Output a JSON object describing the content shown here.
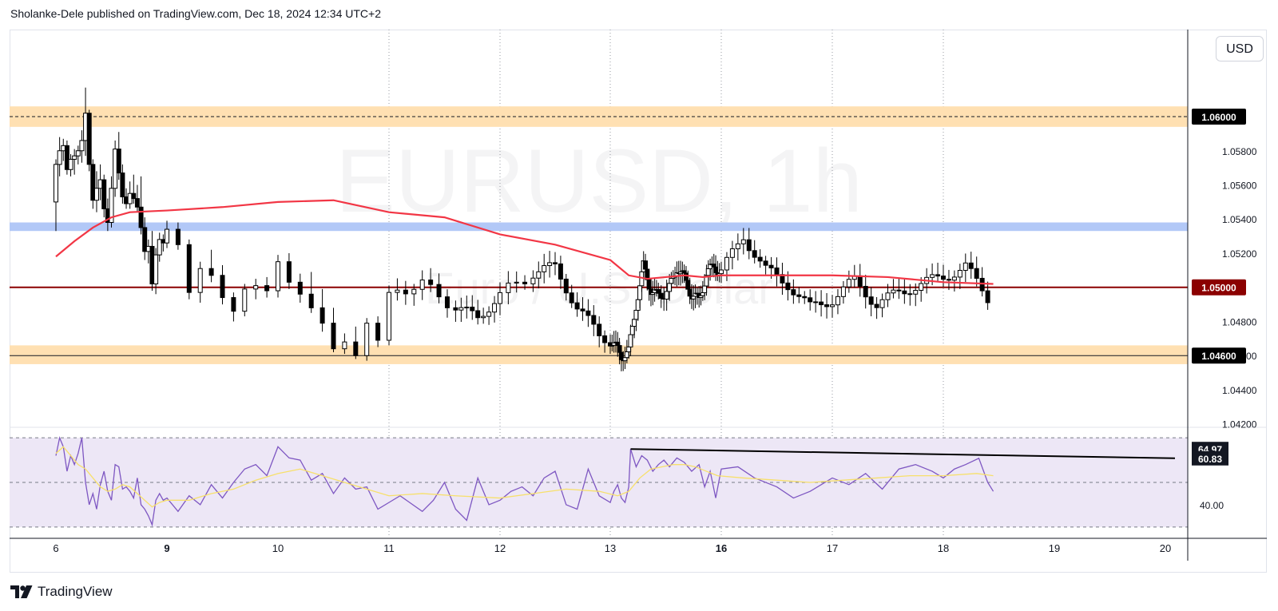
{
  "header": {
    "published_by": "Sholanke-Dele published on TradingView.com, Dec 18, 2024 12:34 UTC+2"
  },
  "currency_button": "USD",
  "watermark": {
    "symbol": "EURUSD, 1h",
    "description": "Euro / U.S. Dollar"
  },
  "footer": {
    "brand": "TradingView"
  },
  "colors": {
    "up": "#ffffff",
    "down": "#000000",
    "ema": "#f23645",
    "support_zone": "#ffe0b2",
    "blue_zone": "#b2c8f7",
    "key_level": "#8b0000",
    "rsi": "#7e57c2",
    "rsi_ma": "#f7e06b",
    "rsi_band": "#ede7f6"
  },
  "chart_data": [
    {
      "type": "candlestick",
      "symbol": "EURUSD",
      "timeframe": "1h",
      "price_axis": {
        "ticks": [
          "1.04200",
          "1.04400",
          "1.04600",
          "1.04800",
          "1.05000",
          "1.05200",
          "1.05400",
          "1.05600",
          "1.05800",
          "1.06000"
        ],
        "ylim": [
          1.0418,
          1.0651
        ]
      },
      "time_axis": {
        "ticks": [
          "6",
          "9",
          "10",
          "11",
          "12",
          "13",
          "16",
          "17",
          "18",
          "19",
          "20"
        ],
        "bold_ticks": [
          "9",
          "16"
        ]
      },
      "horizontal_levels": [
        {
          "price": 1.06,
          "label": "1.06000",
          "style": "dashed",
          "zone": [
            1.0594,
            1.0606
          ]
        },
        {
          "price": 1.05,
          "label": "1.05000",
          "style": "solid"
        },
        {
          "price": 1.046,
          "label": "1.04600",
          "style": "solid",
          "zone": [
            1.0455,
            1.0466
          ]
        }
      ],
      "resistance_zone": [
        1.0533,
        1.0538
      ],
      "ema_line": [
        {
          "x": 6.0,
          "y": 1.0518
        },
        {
          "x": 6.5,
          "y": 1.0527
        },
        {
          "x": 7.0,
          "y": 1.0535
        },
        {
          "x": 7.5,
          "y": 1.0541
        },
        {
          "x": 8.0,
          "y": 1.0544
        },
        {
          "x": 9.0,
          "y": 1.0545
        },
        {
          "x": 9.5,
          "y": 1.0547
        },
        {
          "x": 10.0,
          "y": 1.055
        },
        {
          "x": 10.5,
          "y": 1.0551
        },
        {
          "x": 11.0,
          "y": 1.0544
        },
        {
          "x": 11.5,
          "y": 1.0541
        },
        {
          "x": 12.0,
          "y": 1.0531
        },
        {
          "x": 12.5,
          "y": 1.0525
        },
        {
          "x": 13.0,
          "y": 1.0516
        },
        {
          "x": 13.5,
          "y": 1.0507
        },
        {
          "x": 14.0,
          "y": 1.0505
        },
        {
          "x": 14.5,
          "y": 1.0506
        },
        {
          "x": 15.0,
          "y": 1.0507
        },
        {
          "x": 15.5,
          "y": 1.0506
        },
        {
          "x": 16.0,
          "y": 1.0507
        },
        {
          "x": 16.5,
          "y": 1.0507
        },
        {
          "x": 17.0,
          "y": 1.0507
        },
        {
          "x": 17.5,
          "y": 1.0506
        },
        {
          "x": 18.0,
          "y": 1.0503
        },
        {
          "x": 18.45,
          "y": 1.0502
        }
      ],
      "candles_ohlc": [
        [
          6.0,
          1.055,
          1.0575,
          1.0533,
          1.0572
        ],
        [
          6.1,
          1.0572,
          1.0588,
          1.0565,
          1.058
        ],
        [
          6.2,
          1.058,
          1.0587,
          1.0574,
          1.0583
        ],
        [
          6.3,
          1.0583,
          1.0586,
          1.0566,
          1.0569
        ],
        [
          6.4,
          1.0569,
          1.0578,
          1.0565,
          1.0575
        ],
        [
          6.5,
          1.0575,
          1.0581,
          1.0566,
          1.0577
        ],
        [
          6.6,
          1.0577,
          1.0583,
          1.0572,
          1.058
        ],
        [
          6.7,
          1.058,
          1.0592,
          1.0573,
          1.0586
        ],
        [
          6.8,
          1.0586,
          1.0617,
          1.0577,
          1.0602
        ],
        [
          6.9,
          1.0602,
          1.0604,
          1.0568,
          1.0572
        ],
        [
          7.0,
          1.0572,
          1.0575,
          1.0546,
          1.0551
        ],
        [
          7.1,
          1.0551,
          1.0568,
          1.0544,
          1.0558
        ],
        [
          7.2,
          1.0558,
          1.0572,
          1.0551,
          1.0563
        ],
        [
          7.3,
          1.0563,
          1.0566,
          1.0541,
          1.0546
        ],
        [
          7.4,
          1.0546,
          1.0552,
          1.0533,
          1.0538
        ],
        [
          7.5,
          1.0538,
          1.0565,
          1.0535,
          1.0558
        ],
        [
          7.6,
          1.0558,
          1.0586,
          1.0553,
          1.0581
        ],
        [
          7.7,
          1.0581,
          1.0591,
          1.0563,
          1.0567
        ],
        [
          7.8,
          1.0567,
          1.0572,
          1.0549,
          1.0553
        ],
        [
          7.9,
          1.0553,
          1.0558,
          1.0546,
          1.0549
        ],
        [
          8.0,
          1.0549,
          1.0562,
          1.0546,
          1.0555
        ],
        [
          8.1,
          1.0555,
          1.0566,
          1.0549,
          1.0552
        ],
        [
          8.2,
          1.0552,
          1.056,
          1.0544,
          1.0547
        ],
        [
          8.3,
          1.0547,
          1.0565,
          1.0531,
          1.0535
        ],
        [
          8.4,
          1.0535,
          1.0541,
          1.0516,
          1.0521
        ],
        [
          8.5,
          1.0521,
          1.0528,
          1.0514,
          1.0524
        ],
        [
          8.6,
          1.0524,
          1.0533,
          1.0498,
          1.0502
        ],
        [
          8.7,
          1.0502,
          1.0523,
          1.0496,
          1.0519
        ],
        [
          8.8,
          1.0519,
          1.0532,
          1.0515,
          1.0528
        ],
        [
          8.9,
          1.0528,
          1.0531,
          1.0521,
          1.0526
        ],
        [
          9.0,
          1.0526,
          1.0539,
          1.0523,
          1.0534
        ],
        [
          9.1,
          1.0534,
          1.0538,
          1.0522,
          1.0525
        ],
        [
          9.2,
          1.0525,
          1.0528,
          1.0493,
          1.0497
        ],
        [
          9.3,
          1.0497,
          1.0515,
          1.0491,
          1.0511
        ],
        [
          9.4,
          1.0511,
          1.0522,
          1.0503,
          1.0507
        ],
        [
          9.5,
          1.0507,
          1.0513,
          1.049,
          1.0494
        ],
        [
          9.6,
          1.0494,
          1.0497,
          1.048,
          1.0486
        ],
        [
          9.7,
          1.0486,
          1.0502,
          1.0483,
          1.0499
        ],
        [
          9.8,
          1.0499,
          1.0505,
          1.0493,
          1.0501
        ],
        [
          9.9,
          1.0501,
          1.0506,
          1.0494,
          1.0498
        ],
        [
          10.0,
          1.0498,
          1.0519,
          1.0494,
          1.0515
        ],
        [
          10.1,
          1.0515,
          1.052,
          1.0499,
          1.0503
        ],
        [
          10.2,
          1.0503,
          1.0508,
          1.0491,
          1.0496
        ],
        [
          10.3,
          1.0496,
          1.0509,
          1.0485,
          1.0488
        ],
        [
          10.4,
          1.0488,
          1.0499,
          1.0474,
          1.0479
        ],
        [
          10.5,
          1.0479,
          1.0488,
          1.0462,
          1.0464
        ],
        [
          10.6,
          1.0464,
          1.0473,
          1.0461,
          1.0468
        ],
        [
          10.7,
          1.0468,
          1.0477,
          1.0458,
          1.046
        ],
        [
          10.8,
          1.046,
          1.0482,
          1.0457,
          1.0479
        ],
        [
          10.9,
          1.0479,
          1.0483,
          1.0465,
          1.0469
        ],
        [
          11.0,
          1.0469,
          1.0501,
          1.0466,
          1.0497
        ]
      ]
    },
    {
      "type": "line",
      "indicator": "RSI",
      "ylim": [
        26,
        74
      ],
      "levels": [
        70,
        50,
        30
      ],
      "price_labels": [
        "64.97",
        "60.83",
        "40.00"
      ],
      "rsi_values": [
        [
          6.0,
          62
        ],
        [
          6.1,
          70
        ],
        [
          6.2,
          66
        ],
        [
          6.3,
          55
        ],
        [
          6.4,
          62
        ],
        [
          6.5,
          58
        ],
        [
          6.6,
          63
        ],
        [
          6.7,
          70
        ],
        [
          6.8,
          50
        ],
        [
          6.9,
          40
        ],
        [
          7.0,
          45
        ],
        [
          7.1,
          38
        ],
        [
          7.2,
          49
        ],
        [
          7.3,
          55
        ],
        [
          7.4,
          46
        ],
        [
          7.5,
          42
        ],
        [
          7.6,
          58
        ],
        [
          7.7,
          57
        ],
        [
          7.8,
          47
        ],
        [
          7.9,
          48
        ],
        [
          8.0,
          46
        ],
        [
          8.1,
          43
        ],
        [
          8.2,
          52
        ],
        [
          8.3,
          40
        ],
        [
          8.4,
          38
        ],
        [
          8.5,
          35
        ],
        [
          8.6,
          31
        ],
        [
          8.7,
          42
        ],
        [
          8.8,
          45
        ],
        [
          8.9,
          42
        ],
        [
          9.0,
          43
        ],
        [
          9.1,
          37
        ],
        [
          9.2,
          44
        ],
        [
          9.3,
          40
        ],
        [
          9.4,
          49
        ],
        [
          9.5,
          43
        ],
        [
          9.6,
          50
        ],
        [
          9.7,
          56
        ],
        [
          9.8,
          58
        ],
        [
          9.9,
          53
        ],
        [
          10.0,
          66
        ],
        [
          10.1,
          61
        ],
        [
          10.2,
          60
        ],
        [
          10.3,
          51
        ],
        [
          10.4,
          54
        ],
        [
          10.5,
          45
        ],
        [
          10.6,
          52
        ],
        [
          10.7,
          47
        ],
        [
          10.8,
          48
        ],
        [
          10.9,
          38
        ],
        [
          11.0,
          41
        ]
      ],
      "rsi_ma_values": [
        [
          6.0,
          63
        ],
        [
          6.2,
          66
        ],
        [
          6.4,
          62
        ],
        [
          6.6,
          58
        ],
        [
          6.8,
          56
        ],
        [
          7.0,
          52
        ],
        [
          7.2,
          48
        ],
        [
          7.4,
          46
        ],
        [
          7.6,
          47
        ],
        [
          7.8,
          49
        ],
        [
          8.0,
          48
        ],
        [
          8.2,
          45
        ],
        [
          8.4,
          42
        ],
        [
          8.6,
          39
        ],
        [
          8.8,
          41
        ],
        [
          9.0,
          42
        ],
        [
          9.2,
          42
        ],
        [
          9.4,
          45
        ],
        [
          9.6,
          47
        ],
        [
          9.8,
          51
        ],
        [
          10.0,
          54
        ],
        [
          10.2,
          56
        ],
        [
          10.4,
          53
        ],
        [
          10.6,
          50
        ],
        [
          10.8,
          47
        ],
        [
          11.0,
          44
        ]
      ],
      "trendline": [
        {
          "x": 13.55,
          "y": 64.97
        },
        {
          "x": 20.2,
          "y": 60.83
        }
      ]
    }
  ]
}
